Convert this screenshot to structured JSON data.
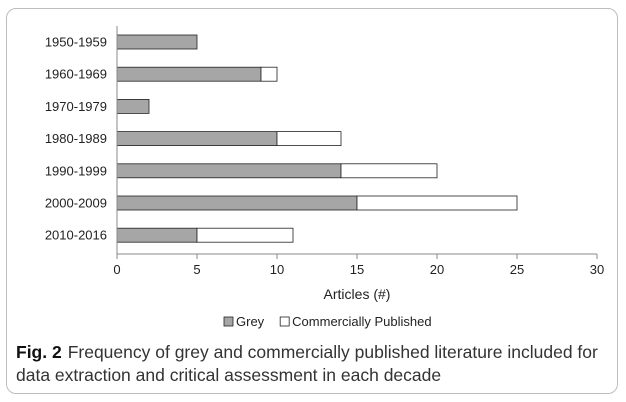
{
  "chart_data": {
    "type": "bar",
    "orientation": "horizontal",
    "stacked": true,
    "categories": [
      "1950-1959",
      "1960-1969",
      "1970-1979",
      "1980-1989",
      "1990-1999",
      "2000-2009",
      "2010-2016"
    ],
    "series": [
      {
        "name": "Grey",
        "values": [
          5,
          9,
          2,
          10,
          14,
          15,
          5
        ],
        "color": "#a6a6a6"
      },
      {
        "name": "Commercially Published",
        "values": [
          0,
          1,
          0,
          4,
          6,
          10,
          6
        ],
        "color": "#ffffff"
      }
    ],
    "xlabel": "Articles (#)",
    "xlim": [
      0,
      30
    ],
    "xticks": [
      0,
      5,
      10,
      15,
      20,
      25,
      30
    ],
    "grid": false,
    "legend": "bottom"
  },
  "caption": {
    "label": "Fig. 2",
    "text": "Frequency of grey and commercially published literature included for data extraction and critical assessment in each decade"
  }
}
